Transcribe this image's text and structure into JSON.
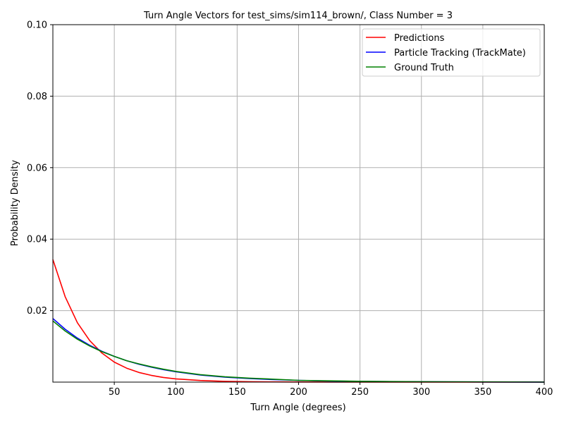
{
  "chart_data": {
    "type": "line",
    "title": "Turn Angle Vectors for test_sims/sim114_brown/, Class Number = 3",
    "xlabel": "Turn Angle (degrees)",
    "ylabel": "Probability Density",
    "xlim": [
      0,
      400
    ],
    "ylim": [
      0,
      0.1
    ],
    "x_ticks": [
      50,
      100,
      150,
      200,
      250,
      300,
      350,
      400
    ],
    "y_ticks": [
      0.02,
      0.04,
      0.06,
      0.08,
      0.1
    ],
    "x_tick_labels": [
      "50",
      "100",
      "150",
      "200",
      "250",
      "300",
      "350",
      "400"
    ],
    "y_tick_labels": [
      "0.02",
      "0.04",
      "0.06",
      "0.08",
      "0.10"
    ],
    "grid": true,
    "legend_position": "top-right",
    "x": [
      0,
      10,
      20,
      30,
      40,
      50,
      60,
      70,
      80,
      90,
      100,
      120,
      140,
      160,
      180,
      200,
      225,
      250,
      275,
      300,
      350,
      400
    ],
    "series": [
      {
        "name": "Predictions",
        "color": "#ff0000",
        "values": [
          0.0343,
          0.0239,
          0.0166,
          0.0116,
          0.0081,
          0.0056,
          0.0039,
          0.0027,
          0.0019,
          0.0013,
          0.0009,
          0.00046,
          0.00022,
          0.00011,
          5e-05,
          3e-05,
          1e-05,
          0.0,
          0.0,
          0.0,
          0.0,
          0.0
        ]
      },
      {
        "name": "Particle Tracking (TrackMate)",
        "color": "#0000ff",
        "values": [
          0.0178,
          0.0148,
          0.0123,
          0.0103,
          0.0086,
          0.0072,
          0.006,
          0.005,
          0.0042,
          0.0035,
          0.0029,
          0.002,
          0.0014,
          0.001,
          0.0007,
          0.0005,
          0.0003,
          0.0002,
          0.00013,
          9e-05,
          4e-05,
          2e-05
        ]
      },
      {
        "name": "Ground Truth",
        "color": "#008000",
        "values": [
          0.0171,
          0.0143,
          0.012,
          0.0101,
          0.0085,
          0.0072,
          0.006,
          0.0051,
          0.0043,
          0.0036,
          0.003,
          0.0021,
          0.0015,
          0.0011,
          0.0008,
          0.0005,
          0.00035,
          0.00024,
          0.00016,
          0.00011,
          5e-05,
          2e-05
        ]
      }
    ]
  }
}
